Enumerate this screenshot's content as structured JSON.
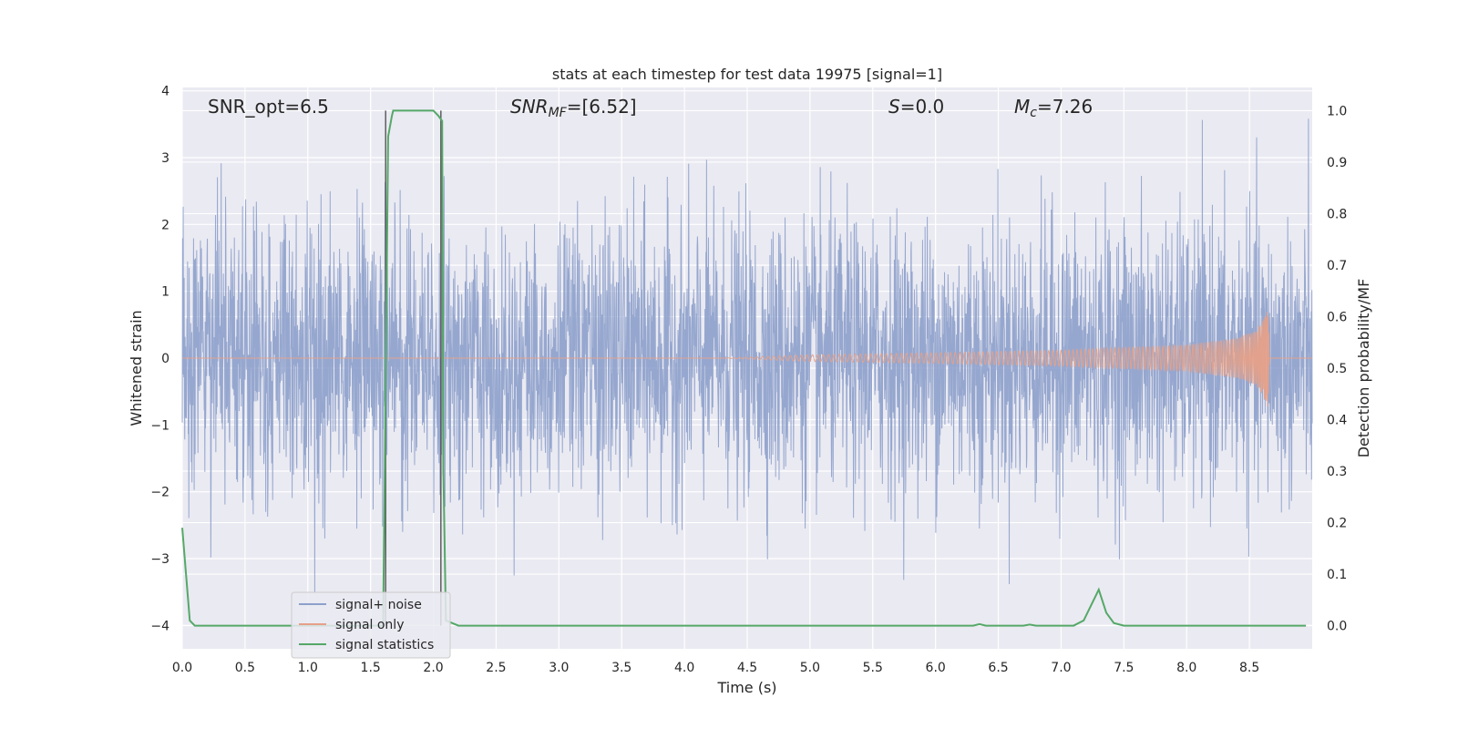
{
  "chart_data": {
    "type": "line",
    "title": "stats at each timestep for test data 19975 [signal=1]",
    "xlabel": "Time (s)",
    "ylabel_left": "Whitened strain",
    "ylabel_right": "Detection probability/MF",
    "xlim": [
      0.0,
      9.0
    ],
    "ylim_left": [
      -4.35,
      4.05
    ],
    "ylim_right": [
      -0.045,
      1.045
    ],
    "x_ticks": [
      "0.0",
      "0.5",
      "1.0",
      "1.5",
      "2.0",
      "2.5",
      "3.0",
      "3.5",
      "4.0",
      "4.5",
      "5.0",
      "5.5",
      "6.0",
      "6.5",
      "7.0",
      "7.5",
      "8.0",
      "8.5"
    ],
    "y_ticks_left": [
      "4",
      "3",
      "2",
      "1",
      "0",
      "−1",
      "−2",
      "−3",
      "−4"
    ],
    "y_ticks_right": [
      "1.0",
      "0.9",
      "0.8",
      "0.7",
      "0.6",
      "0.5",
      "0.4",
      "0.3",
      "0.2",
      "0.1",
      "0.0"
    ],
    "grid": true,
    "legend_position": "lower-left",
    "annotations": {
      "snr_opt": "SNR_opt=6.5",
      "snr_mf_main": "SNR",
      "snr_mf_sub": "MF",
      "snr_mf_rest": "=[6.52]",
      "s_italic": "S",
      "s_rest": "=0.0",
      "mc_main": "M",
      "mc_sub": "c",
      "mc_rest": "=7.26"
    },
    "vertical_lines_x": [
      1.62,
      2.06
    ],
    "series": [
      {
        "name": "signal+ noise",
        "color": "#8da0cb",
        "description_values": {
          "std_approx": 1.0,
          "max": 3.65,
          "min": -4.0
        }
      },
      {
        "name": "signal only",
        "color": "#e5a088",
        "envelope": {
          "x": [
            0.0,
            4.3,
            5.0,
            6.0,
            7.0,
            8.0,
            8.4,
            8.55,
            8.6,
            8.65,
            8.66,
            8.7,
            9.0
          ],
          "amp": [
            0.0,
            0.0,
            0.05,
            0.08,
            0.12,
            0.2,
            0.3,
            0.42,
            0.55,
            0.75,
            0.0,
            0.0,
            0.0
          ]
        }
      },
      {
        "name": "signal statistics",
        "color": "#55a868",
        "x": [
          0.0,
          0.03,
          0.06,
          0.1,
          0.2,
          1.0,
          1.6,
          1.64,
          1.67,
          1.68,
          1.7,
          2.0,
          2.04,
          2.07,
          2.08,
          2.1,
          2.2,
          6.3,
          6.35,
          6.4,
          6.7,
          6.75,
          6.8,
          7.1,
          7.18,
          7.24,
          7.3,
          7.36,
          7.42,
          7.5,
          8.95
        ],
        "y": [
          0.19,
          0.1,
          0.01,
          0.0,
          0.0,
          0.0,
          0.0,
          0.95,
          0.99,
          1.0,
          1.0,
          1.0,
          0.99,
          0.98,
          0.3,
          0.01,
          0.0,
          0.0,
          0.003,
          0.0,
          0.0,
          0.002,
          0.0,
          0.0,
          0.01,
          0.04,
          0.07,
          0.025,
          0.005,
          0.0,
          0.0
        ]
      }
    ]
  }
}
